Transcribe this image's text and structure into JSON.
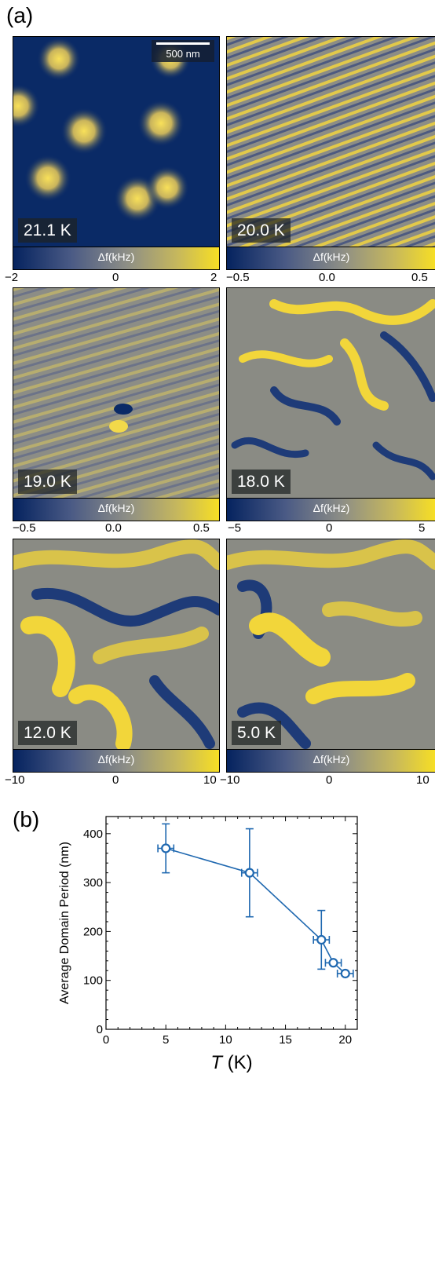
{
  "panel_a": {
    "label": "(a)",
    "scale_bar": "500 nm",
    "colorbar_label": "Δf(kHz)",
    "maps": [
      {
        "temp": "21.1 K",
        "pattern": "skyrmion",
        "ticks": [
          "−2",
          "0",
          "2"
        ]
      },
      {
        "temp": "20.0 K",
        "pattern": "stripe-fine",
        "ticks": [
          "−0.5",
          "0.0",
          "0.5"
        ]
      },
      {
        "temp": "19.0 K",
        "pattern": "stripe-fine",
        "ticks": [
          "−0.5",
          "0.0",
          "0.5"
        ]
      },
      {
        "temp": "18.0 K",
        "pattern": "labyrinth",
        "ticks": [
          "−5",
          "0",
          "5"
        ]
      },
      {
        "temp": "12.0 K",
        "pattern": "labyrinth-wide",
        "ticks": [
          "−10",
          "0",
          "10"
        ]
      },
      {
        "temp": "5.0 K",
        "pattern": "labyrinth-wide",
        "ticks": [
          "−10",
          "0",
          "10"
        ]
      }
    ],
    "colors": {
      "low": "#05235f",
      "mid": "#8d8e86",
      "high": "#f7df24"
    }
  },
  "panel_b": {
    "label": "(b)"
  },
  "chart_data": {
    "type": "scatter",
    "title": "",
    "xlabel": "T (K)",
    "ylabel": "Average Domain Period (nm)",
    "xlim": [
      0,
      21
    ],
    "ylim": [
      0,
      435
    ],
    "x_ticks": [
      "0",
      "5",
      "10",
      "15",
      "20"
    ],
    "y_ticks": [
      "0",
      "100",
      "200",
      "300",
      "400"
    ],
    "grid": false,
    "line_color": "#1f68b0",
    "series": [
      {
        "points": [
          {
            "x": 5.0,
            "y": 370,
            "yerr": 50,
            "xerr": 0.4
          },
          {
            "x": 12.0,
            "y": 320,
            "yerr": 90,
            "xerr": 0.4
          },
          {
            "x": 18.0,
            "y": 183,
            "yerr": 60,
            "xerr": 0.4
          },
          {
            "x": 19.0,
            "y": 136,
            "yerr": 0,
            "xerr": 0.4
          },
          {
            "x": 20.0,
            "y": 114,
            "yerr": 0,
            "xerr": 0.4
          }
        ]
      }
    ]
  }
}
